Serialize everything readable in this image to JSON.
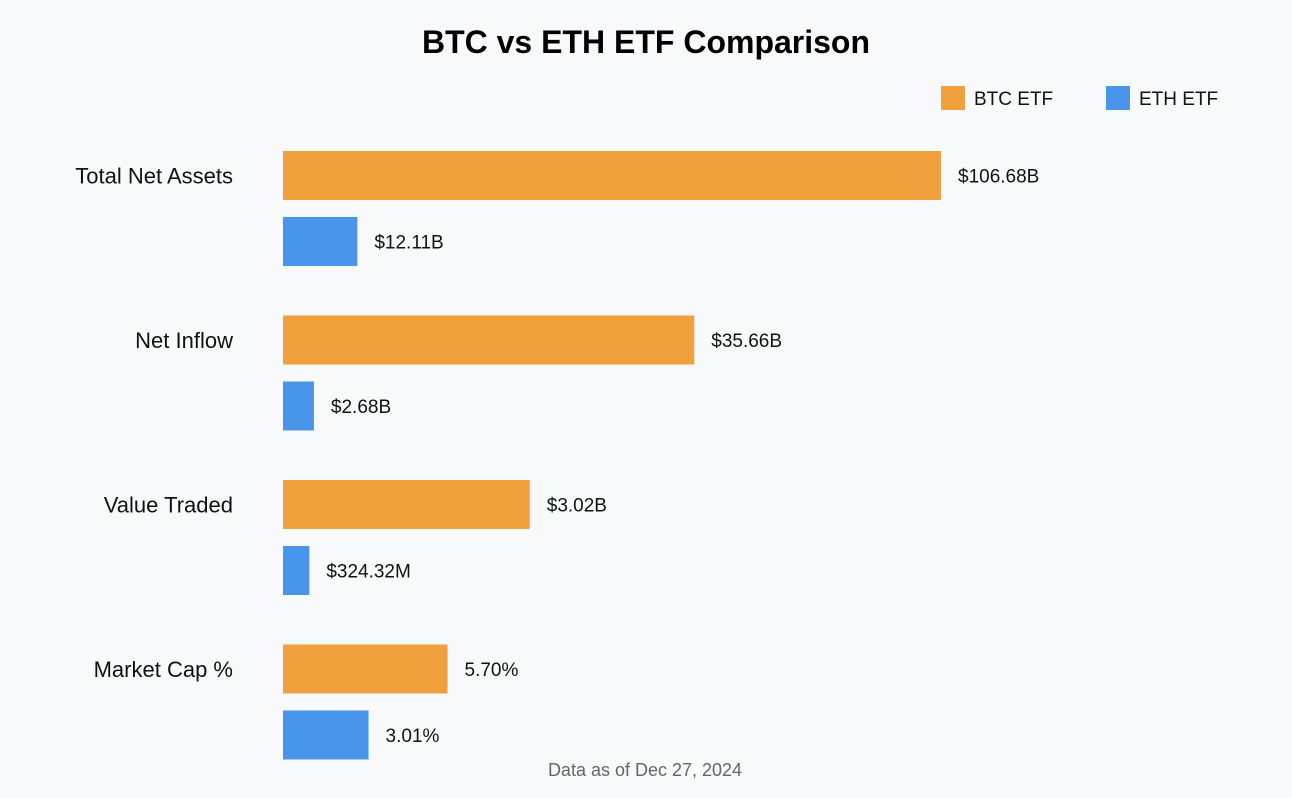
{
  "chart_data": {
    "type": "bar",
    "orientation": "horizontal",
    "title": "BTC vs ETH ETF Comparison",
    "categories": [
      "Total Net Assets",
      "Net Inflow",
      "Value Traded",
      "Market Cap %"
    ],
    "series": [
      {
        "name": "BTC ETF",
        "color": "#f0a03c",
        "values": [
          106.68,
          35.66,
          3.02,
          5.7
        ],
        "labels": [
          "$106.68B",
          "$35.66B",
          "$3.02B",
          "5.70%"
        ]
      },
      {
        "name": "ETH ETF",
        "color": "#4a95ec",
        "values": [
          12.11,
          2.68,
          0.32432,
          3.01
        ],
        "labels": [
          "$12.11B",
          "$2.68B",
          "$324.32M",
          "3.01%"
        ]
      }
    ],
    "bar_fraction_of_max": [
      [
        1.0,
        0.113
      ],
      [
        0.625,
        0.047
      ],
      [
        0.375,
        0.04
      ],
      [
        0.25,
        0.13
      ]
    ],
    "legend_position": "top-right",
    "grid": false,
    "footnote": "Data as of Dec 27, 2024"
  }
}
